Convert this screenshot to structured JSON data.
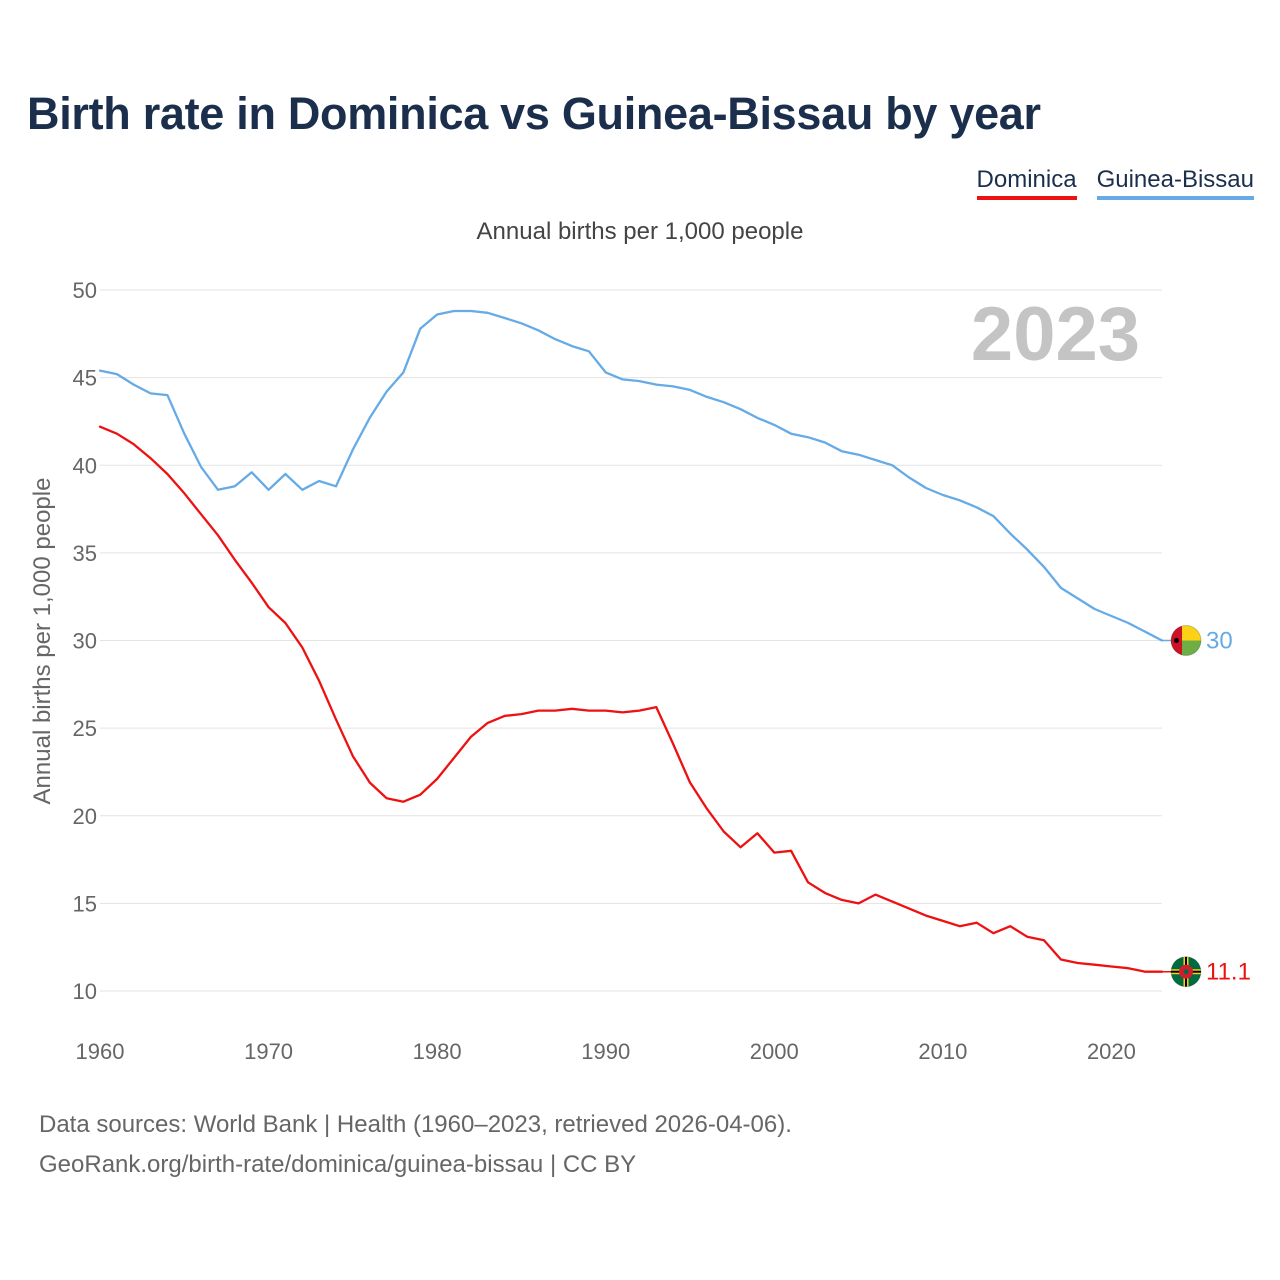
{
  "title": "Birth rate in Dominica vs Guinea-Bissau by year",
  "subtitle": "Annual births per 1,000 people",
  "footer": {
    "line1": "Data sources: World Bank | Health (1960–2023, retrieved 2026-04-06).",
    "line2": "GeoRank.org/birth-rate/dominica/guinea-bissau | CC BY"
  },
  "legend": [
    {
      "label": "Dominica",
      "color": "#ee1111"
    },
    {
      "label": "Guinea-Bissau",
      "color": "#66aae6"
    }
  ],
  "chart_data": {
    "type": "line",
    "title": "Birth rate in Dominica vs Guinea-Bissau by year",
    "xlabel": "",
    "ylabel": "Annual births per 1,000 people",
    "year_watermark": "2023",
    "xlim": [
      1960,
      2023
    ],
    "ylim": [
      10,
      50
    ],
    "x_ticks": [
      1960,
      1970,
      1980,
      1990,
      2000,
      2010,
      2020
    ],
    "y_ticks": [
      10,
      15,
      20,
      25,
      30,
      35,
      40,
      45,
      50
    ],
    "x": [
      1960,
      1961,
      1962,
      1963,
      1964,
      1965,
      1966,
      1967,
      1968,
      1969,
      1970,
      1971,
      1972,
      1973,
      1974,
      1975,
      1976,
      1977,
      1978,
      1979,
      1980,
      1981,
      1982,
      1983,
      1984,
      1985,
      1986,
      1987,
      1988,
      1989,
      1990,
      1991,
      1992,
      1993,
      1994,
      1995,
      1996,
      1997,
      1998,
      1999,
      2000,
      2001,
      2002,
      2003,
      2004,
      2005,
      2006,
      2007,
      2008,
      2009,
      2010,
      2011,
      2012,
      2013,
      2014,
      2015,
      2016,
      2017,
      2018,
      2019,
      2020,
      2021,
      2022,
      2023
    ],
    "series": [
      {
        "name": "Dominica",
        "color": "#ee1111",
        "end_label": "11.1",
        "values": [
          42.2,
          41.8,
          41.2,
          40.4,
          39.5,
          38.4,
          37.2,
          36.0,
          34.6,
          33.3,
          31.9,
          31.0,
          29.6,
          27.7,
          25.5,
          23.4,
          21.9,
          21.0,
          20.8,
          21.2,
          22.1,
          23.3,
          24.5,
          25.3,
          25.7,
          25.8,
          26.0,
          26.0,
          26.1,
          26.0,
          26.0,
          25.9,
          26.0,
          26.2,
          24.1,
          21.9,
          20.4,
          19.1,
          18.2,
          19.0,
          17.9,
          18.0,
          16.2,
          15.6,
          15.2,
          15.0,
          15.5,
          15.1,
          14.7,
          14.3,
          14.0,
          13.7,
          13.9,
          13.3,
          13.7,
          13.1,
          12.9,
          11.8,
          11.6,
          11.5,
          11.4,
          11.3,
          11.1,
          11.1
        ]
      },
      {
        "name": "Guinea-Bissau",
        "color": "#66aae6",
        "end_label": "30",
        "values": [
          45.4,
          45.2,
          44.6,
          44.1,
          44.0,
          41.8,
          39.9,
          38.6,
          38.8,
          39.6,
          38.6,
          39.5,
          38.6,
          39.1,
          38.8,
          40.9,
          42.7,
          44.2,
          45.3,
          47.8,
          48.6,
          48.8,
          48.8,
          48.7,
          48.4,
          48.1,
          47.7,
          47.2,
          46.8,
          46.5,
          45.3,
          44.9,
          44.8,
          44.6,
          44.5,
          44.3,
          43.9,
          43.6,
          43.2,
          42.7,
          42.3,
          41.8,
          41.6,
          41.3,
          40.8,
          40.6,
          40.3,
          40.0,
          39.3,
          38.7,
          38.3,
          38.0,
          37.6,
          37.1,
          36.1,
          35.2,
          34.2,
          33.0,
          32.4,
          31.8,
          31.4,
          31.0,
          30.5,
          30.0
        ]
      }
    ]
  }
}
